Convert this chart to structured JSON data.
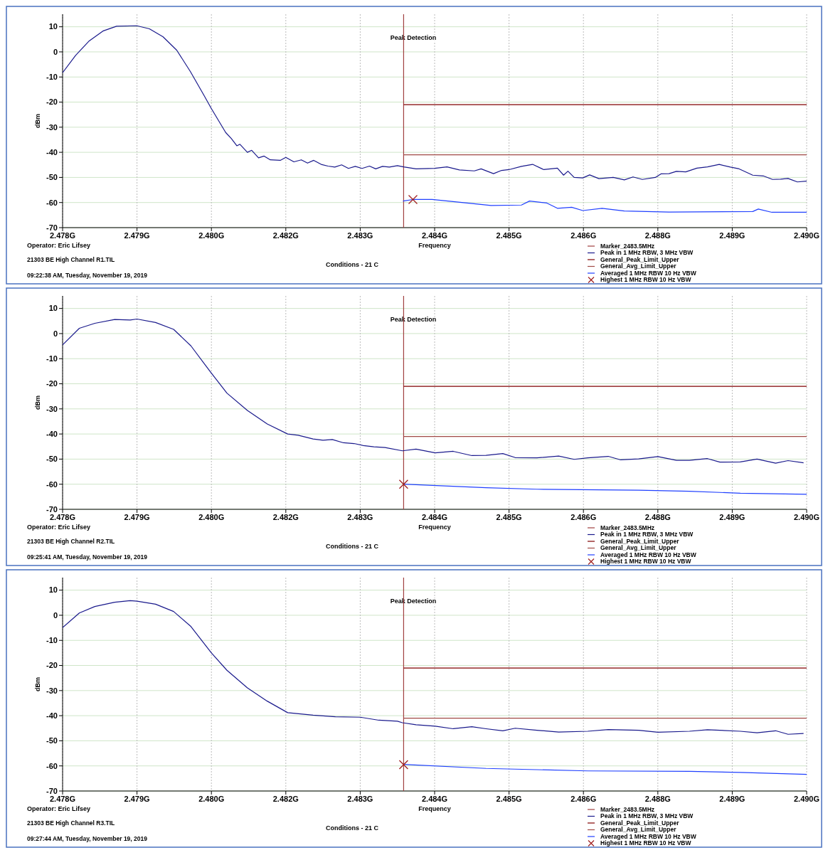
{
  "chart_data": [
    {
      "type": "line",
      "title": "Peak Detection",
      "xlabel": "Frequency",
      "ylabel": "dBm",
      "xlim": [
        2.478,
        2.49
      ],
      "ylim": [
        -70,
        15
      ],
      "xticks": [
        {
          "value": 2.478,
          "label": "2.478G"
        },
        {
          "value": 2.4792,
          "label": "2.479G"
        },
        {
          "value": 2.4804,
          "label": "2.480G"
        },
        {
          "value": 2.4816,
          "label": "2.482G"
        },
        {
          "value": 2.4828,
          "label": "2.483G"
        },
        {
          "value": 2.484,
          "label": "2.484G"
        },
        {
          "value": 2.4852,
          "label": "2.485G"
        },
        {
          "value": 2.4864,
          "label": "2.486G"
        },
        {
          "value": 2.4876,
          "label": "2.488G"
        },
        {
          "value": 2.4888,
          "label": "2.489G"
        },
        {
          "value": 2.49,
          "label": "2.490G"
        }
      ],
      "yticks": [
        -70,
        -60,
        -50,
        -40,
        -30,
        -20,
        -10,
        0,
        10
      ],
      "grid": true,
      "legend": "bottom right",
      "annotations": [
        "Operator: Eric Lifsey",
        "21303 BE High Channel R1.TIL",
        "09:22:38 AM, Tuesday, November 19, 2019",
        "Conditions - 21 C"
      ],
      "series": [
        {
          "name": "Marker_2483.5MHz",
          "color": "#a04040",
          "x": [
            2.4835,
            2.4835
          ],
          "values": [
            -70,
            15
          ]
        },
        {
          "name": "Peak in 1 MHz RBW, 3 MHz VBW",
          "color": "#1a1a8c",
          "x": [
            2.478,
            2.47821,
            2.47843,
            2.47865,
            2.47887,
            2.4792,
            2.4794,
            2.47962,
            2.47984,
            2.48006,
            2.48028,
            2.4804,
            2.48063,
            2.48072,
            2.48081,
            2.48086,
            2.48098,
            2.48105,
            2.48116,
            2.48125,
            2.48135,
            2.48151,
            2.4816,
            2.48173,
            2.48185,
            2.48195,
            2.48205,
            2.48217,
            2.48228,
            2.48239,
            2.4825,
            2.48261,
            2.48272,
            2.48283,
            2.48295,
            2.48305,
            2.48316,
            2.48327,
            2.4834,
            2.4835,
            2.4837,
            2.484,
            2.4842,
            2.4844,
            2.48464,
            2.48475,
            2.48495,
            2.48508,
            2.4852,
            2.4854,
            2.48558,
            2.48576,
            2.48598,
            2.48608,
            2.48615,
            2.48625,
            2.48639,
            2.4865,
            2.48665,
            2.48688,
            2.48706,
            2.4872,
            2.48735,
            2.48756,
            2.48765,
            2.48778,
            2.4879,
            2.48805,
            2.48823,
            2.4884,
            2.48859,
            2.48877,
            2.4889,
            2.48913,
            2.4893,
            2.48945,
            2.48958,
            2.4897,
            2.48985,
            2.49
          ],
          "values": [
            -8.3,
            -1.4,
            4.4,
            8.3,
            10.2,
            10.4,
            9.2,
            6.0,
            0.7,
            -7.8,
            -17.3,
            -22.6,
            -32.1,
            -34.5,
            -37.4,
            -36.8,
            -40.0,
            -39.2,
            -42.2,
            -41.5,
            -43.0,
            -43.2,
            -42.0,
            -43.8,
            -43.0,
            -44.3,
            -43.2,
            -44.8,
            -45.5,
            -45.9,
            -45.0,
            -46.4,
            -45.6,
            -46.4,
            -45.5,
            -46.6,
            -45.6,
            -45.9,
            -45.3,
            -45.8,
            -46.6,
            -46.4,
            -45.8,
            -47.0,
            -47.4,
            -46.6,
            -48.5,
            -47.2,
            -46.9,
            -45.6,
            -44.8,
            -46.9,
            -46.3,
            -49.1,
            -47.5,
            -50.0,
            -50.2,
            -49.0,
            -50.5,
            -50.0,
            -51.0,
            -49.8,
            -50.8,
            -50.0,
            -48.6,
            -48.5,
            -47.6,
            -47.8,
            -46.3,
            -45.8,
            -44.8,
            -45.9,
            -46.5,
            -49.1,
            -49.4,
            -50.8,
            -50.7,
            -50.4,
            -51.8,
            -51.5
          ]
        },
        {
          "name": "General_Peak_Limit_Upper",
          "color": "#800000",
          "x": [
            2.4835,
            2.49
          ],
          "values": [
            -21,
            -21
          ]
        },
        {
          "name": "General_Avg_Limit_Upper",
          "color": "#a04a45",
          "x": [
            2.4835,
            2.49
          ],
          "values": [
            -41,
            -41
          ]
        },
        {
          "name": "Averaged 1 MHz RBW 10 Hz VBW",
          "color": "#2040ff",
          "x": [
            2.48349,
            2.48365,
            2.48396,
            2.48441,
            2.48491,
            2.4854,
            2.48553,
            2.48581,
            2.48598,
            2.48621,
            2.48639,
            2.4867,
            2.48706,
            2.48778,
            2.48913,
            2.48922,
            2.48944,
            2.49
          ],
          "values": [
            -59.4,
            -58.8,
            -58.8,
            -59.9,
            -61.2,
            -61.0,
            -59.4,
            -60.2,
            -62.3,
            -61.9,
            -63.2,
            -62.3,
            -63.4,
            -63.8,
            -63.6,
            -62.6,
            -63.9,
            -63.9
          ]
        },
        {
          "name": "Highest 1 MHz RBW 10 Hz VBW",
          "type": "scatter",
          "marker": "cross",
          "color": "#a02020",
          "x": [
            2.48365
          ],
          "values": [
            -58.8
          ]
        }
      ]
    },
    {
      "type": "line",
      "title": "Peak Detection",
      "xlabel": "Frequency",
      "ylabel": "dBm",
      "xlim": [
        2.478,
        2.49
      ],
      "ylim": [
        -70,
        15
      ],
      "xticks": [
        {
          "value": 2.478,
          "label": "2.478G"
        },
        {
          "value": 2.4792,
          "label": "2.479G"
        },
        {
          "value": 2.4804,
          "label": "2.480G"
        },
        {
          "value": 2.4816,
          "label": "2.482G"
        },
        {
          "value": 2.4828,
          "label": "2.483G"
        },
        {
          "value": 2.484,
          "label": "2.484G"
        },
        {
          "value": 2.4852,
          "label": "2.485G"
        },
        {
          "value": 2.4864,
          "label": "2.486G"
        },
        {
          "value": 2.4876,
          "label": "2.488G"
        },
        {
          "value": 2.4888,
          "label": "2.489G"
        },
        {
          "value": 2.49,
          "label": "2.490G"
        }
      ],
      "yticks": [
        -70,
        -60,
        -50,
        -40,
        -30,
        -20,
        -10,
        0,
        10
      ],
      "grid": true,
      "legend": "bottom right",
      "annotations": [
        "Operator: Eric Lifsey",
        "21303 BE High Channel R2.TIL",
        "09:25:41 AM, Tuesday, November 19, 2019",
        "Conditions - 21 C"
      ],
      "series": [
        {
          "name": "Marker_2483.5MHz",
          "color": "#a04040",
          "x": [
            2.4835,
            2.4835
          ],
          "values": [
            -70,
            15
          ]
        },
        {
          "name": "Peak in 1 MHz RBW, 3 MHz VBW",
          "color": "#1a1a8c",
          "x": [
            2.478,
            2.47827,
            2.47852,
            2.47884,
            2.47909,
            2.4792,
            2.4795,
            2.47979,
            2.48007,
            2.4804,
            2.48065,
            2.48098,
            2.4813,
            2.48163,
            2.4818,
            2.48204,
            2.4822,
            2.48235,
            2.48253,
            2.4827,
            2.48285,
            2.48302,
            2.4832,
            2.48348,
            2.4837,
            2.48401,
            2.4843,
            2.4846,
            2.48483,
            2.4851,
            2.4853,
            2.48565,
            2.486,
            2.48625,
            2.48647,
            2.4868,
            2.487,
            2.48729,
            2.4876,
            2.4879,
            2.48811,
            2.4884,
            2.4886,
            2.48893,
            2.4892,
            2.4895,
            2.4897,
            2.48995
          ],
          "values": [
            -4.5,
            2.1,
            4.1,
            5.6,
            5.4,
            5.8,
            4.4,
            1.7,
            -4.9,
            -15.8,
            -23.7,
            -30.6,
            -36.0,
            -40.0,
            -40.5,
            -42.0,
            -42.5,
            -42.2,
            -43.5,
            -43.8,
            -44.6,
            -45.1,
            -45.4,
            -46.7,
            -46.0,
            -47.5,
            -46.9,
            -48.6,
            -48.5,
            -47.8,
            -49.4,
            -49.5,
            -48.8,
            -50.1,
            -49.5,
            -48.9,
            -50.3,
            -49.9,
            -49.0,
            -50.5,
            -50.5,
            -49.8,
            -51.2,
            -51.1,
            -50.0,
            -51.6,
            -50.6,
            -51.5
          ]
        },
        {
          "name": "General_Peak_Limit_Upper",
          "color": "#800000",
          "x": [
            2.4835,
            2.49
          ],
          "values": [
            -21,
            -21
          ]
        },
        {
          "name": "General_Avg_Limit_Upper",
          "color": "#a04a45",
          "x": [
            2.4835,
            2.49
          ],
          "values": [
            -41,
            -41
          ]
        },
        {
          "name": "Averaged 1 MHz RBW 10 Hz VBW",
          "color": "#2040ff",
          "x": [
            2.4835,
            2.48483,
            2.48565,
            2.48729,
            2.48811,
            2.48893,
            2.49
          ],
          "values": [
            -60,
            -61.4,
            -62.0,
            -62.4,
            -62.8,
            -63.6,
            -64.0
          ]
        },
        {
          "name": "Highest 1 MHz RBW 10 Hz VBW",
          "type": "scatter",
          "marker": "cross",
          "color": "#a02020",
          "x": [
            2.4835
          ],
          "values": [
            -60
          ]
        }
      ]
    },
    {
      "type": "line",
      "title": "Peak Detection",
      "xlabel": "Frequency",
      "ylabel": "dBm",
      "xlim": [
        2.478,
        2.49
      ],
      "ylim": [
        -70,
        15
      ],
      "xticks": [
        {
          "value": 2.478,
          "label": "2.478G"
        },
        {
          "value": 2.4792,
          "label": "2.479G"
        },
        {
          "value": 2.4804,
          "label": "2.480G"
        },
        {
          "value": 2.4816,
          "label": "2.482G"
        },
        {
          "value": 2.4828,
          "label": "2.483G"
        },
        {
          "value": 2.484,
          "label": "2.484G"
        },
        {
          "value": 2.4852,
          "label": "2.485G"
        },
        {
          "value": 2.4864,
          "label": "2.486G"
        },
        {
          "value": 2.4876,
          "label": "2.488G"
        },
        {
          "value": 2.4888,
          "label": "2.489G"
        },
        {
          "value": 2.49,
          "label": "2.490G"
        }
      ],
      "yticks": [
        -70,
        -60,
        -50,
        -40,
        -30,
        -20,
        -10,
        0,
        10
      ],
      "grid": true,
      "legend": "bottom right",
      "annotations": [
        "Operator: Eric Lifsey",
        "21303 BE High Channel R3.TIL",
        "09:27:44 AM, Tuesday, November 19, 2019",
        "Conditions - 21 C"
      ],
      "series": [
        {
          "name": "Marker_2483.5MHz",
          "color": "#a04040",
          "x": [
            2.4835,
            2.4835
          ],
          "values": [
            -70,
            15
          ]
        },
        {
          "name": "Peak in 1 MHz RBW, 3 MHz VBW",
          "color": "#1a1a8c",
          "x": [
            2.478,
            2.47827,
            2.47852,
            2.47884,
            2.47909,
            2.4792,
            2.4795,
            2.47979,
            2.48007,
            2.4804,
            2.48065,
            2.48098,
            2.4813,
            2.48163,
            2.48204,
            2.4824,
            2.4828,
            2.4831,
            2.4834,
            2.48348,
            2.4837,
            2.48401,
            2.4843,
            2.4846,
            2.48483,
            2.4851,
            2.4853,
            2.48565,
            2.486,
            2.48647,
            2.4868,
            2.48729,
            2.4876,
            2.48811,
            2.4884,
            2.48893,
            2.4892,
            2.4895,
            2.4897,
            2.48995
          ],
          "values": [
            -4.9,
            0.9,
            3.5,
            5.2,
            5.8,
            5.6,
            4.4,
            1.5,
            -4.5,
            -15.0,
            -21.9,
            -28.9,
            -34.2,
            -38.8,
            -39.8,
            -40.4,
            -40.6,
            -41.8,
            -42.2,
            -42.8,
            -43.6,
            -44.2,
            -45.2,
            -44.4,
            -45.2,
            -46.0,
            -45.0,
            -45.8,
            -46.5,
            -46.2,
            -45.5,
            -45.8,
            -46.6,
            -46.2,
            -45.6,
            -46.2,
            -46.8,
            -46.0,
            -47.4,
            -47.1
          ]
        },
        {
          "name": "General_Peak_Limit_Upper",
          "color": "#800000",
          "x": [
            2.4835,
            2.49
          ],
          "values": [
            -21,
            -21
          ]
        },
        {
          "name": "General_Avg_Limit_Upper",
          "color": "#a04a45",
          "x": [
            2.4835,
            2.49
          ],
          "values": [
            -41,
            -41
          ]
        },
        {
          "name": "Averaged 1 MHz RBW 10 Hz VBW",
          "color": "#2040ff",
          "x": [
            2.4835,
            2.48483,
            2.48647,
            2.48811,
            2.48893,
            2.49
          ],
          "values": [
            -59.4,
            -61.0,
            -62.0,
            -62.2,
            -62.6,
            -63.4
          ]
        },
        {
          "name": "Highest 1 MHz RBW 10 Hz VBW",
          "type": "scatter",
          "marker": "cross",
          "color": "#a02020",
          "x": [
            2.4835
          ],
          "values": [
            -59.5
          ]
        }
      ]
    }
  ]
}
